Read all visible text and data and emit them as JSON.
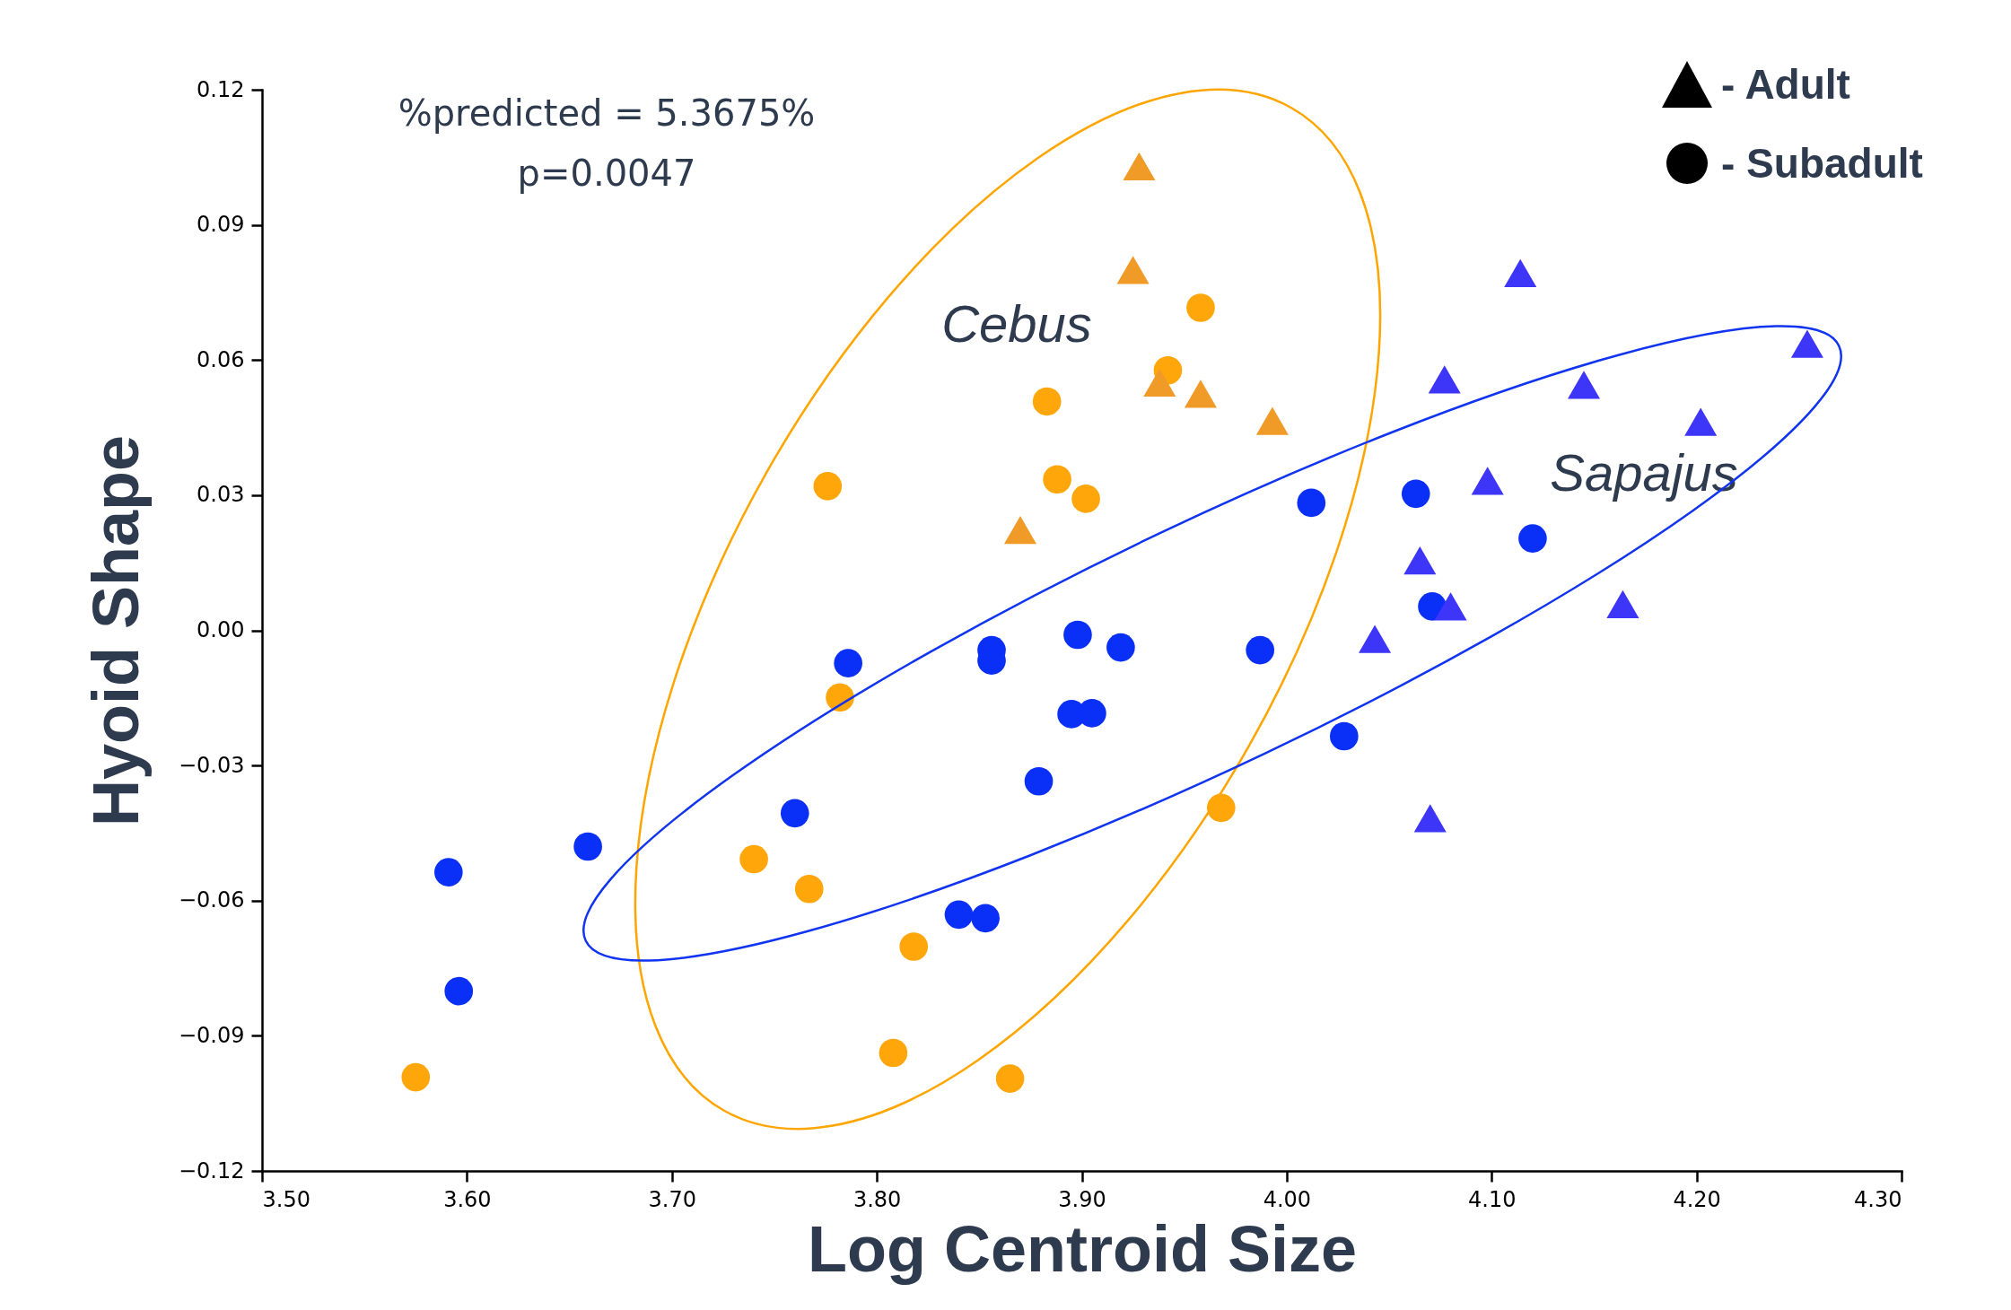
{
  "chart_data": {
    "type": "scatter",
    "xlabel": "Log Centroid Size",
    "ylabel": "Hyoid Shape",
    "annotations": [
      "%predicted = 5.3675%",
      "p=0.0047",
      "- Adult",
      "- Subadult",
      "Cebus",
      "Sapajus"
    ],
    "series": [
      {
        "marker": "circle",
        "color": "#ffa60a",
        "x": [
          3.958,
          3.942,
          3.883,
          3.888,
          3.902,
          3.776,
          3.782,
          3.968,
          3.74,
          3.767,
          3.818,
          3.808,
          3.865,
          3.575
        ],
        "values": [
          0.0716,
          0.0577,
          0.0508,
          0.0335,
          0.0292,
          0.032,
          -0.0149,
          -0.0394,
          -0.0508,
          -0.0574,
          -0.0702,
          -0.0938,
          -0.0995,
          -0.0992
        ]
      },
      {
        "marker": "circle",
        "color": "#0a2ff7",
        "x": [
          4.012,
          4.063,
          4.12,
          4.071,
          3.898,
          3.919,
          3.987,
          3.856,
          3.856,
          3.786,
          3.895,
          3.905,
          4.028,
          3.879,
          3.76,
          3.659,
          3.591,
          3.596,
          3.84,
          3.853
        ],
        "values": [
          0.0283,
          0.0303,
          0.0204,
          0.0053,
          -0.001,
          -0.0038,
          -0.0044,
          -0.0044,
          -0.0067,
          -0.0073,
          -0.0186,
          -0.0184,
          -0.0235,
          -0.0335,
          -0.0406,
          -0.048,
          -0.0537,
          -0.0801,
          -0.0631,
          -0.0639
        ]
      },
      {
        "marker": "triangle",
        "color": "#f09a28",
        "x": [
          3.928,
          3.925,
          3.938,
          3.958,
          3.993,
          3.87
        ],
        "values": [
          0.103,
          0.08,
          0.055,
          0.0525,
          0.0465,
          0.0223
        ]
      },
      {
        "marker": "triangle",
        "color": "#3d35f7",
        "x": [
          4.114,
          4.254,
          4.077,
          4.145,
          4.202,
          4.098,
          4.065,
          4.08,
          4.164,
          4.043,
          4.07
        ],
        "values": [
          0.0793,
          0.0636,
          0.0557,
          0.0545,
          0.0463,
          0.0332,
          0.0155,
          0.0053,
          0.0058,
          -0.0019,
          -0.0417
        ]
      }
    ],
    "xlim": [
      3.5,
      4.3
    ],
    "xticks": [
      {
        "value": 3.5,
        "label": "3.50"
      },
      {
        "value": 3.6,
        "label": "3.60"
      },
      {
        "value": 3.7,
        "label": "3.70"
      },
      {
        "value": 3.8,
        "label": "3.80"
      },
      {
        "value": 3.9,
        "label": "3.90"
      },
      {
        "value": 4.0,
        "label": "4.00"
      },
      {
        "value": 4.1,
        "label": "4.10"
      },
      {
        "value": 4.2,
        "label": "4.20"
      },
      {
        "value": 4.3,
        "label": "4.30"
      }
    ],
    "ylim": [
      -0.12,
      0.12
    ],
    "yticks": [
      {
        "value": -0.12,
        "label": "−0.12"
      },
      {
        "value": -0.09,
        "label": "−0.09"
      },
      {
        "value": -0.06,
        "label": "−0.06"
      },
      {
        "value": -0.03,
        "label": "−0.03"
      },
      {
        "value": 0,
        "label": "0.00"
      },
      {
        "value": 0.03,
        "label": "0.03"
      },
      {
        "value": 0.06,
        "label": "0.06"
      },
      {
        "value": 0.09,
        "label": "0.09"
      },
      {
        "value": 0.12,
        "label": "0.12"
      }
    ],
    "grid": false
  }
}
